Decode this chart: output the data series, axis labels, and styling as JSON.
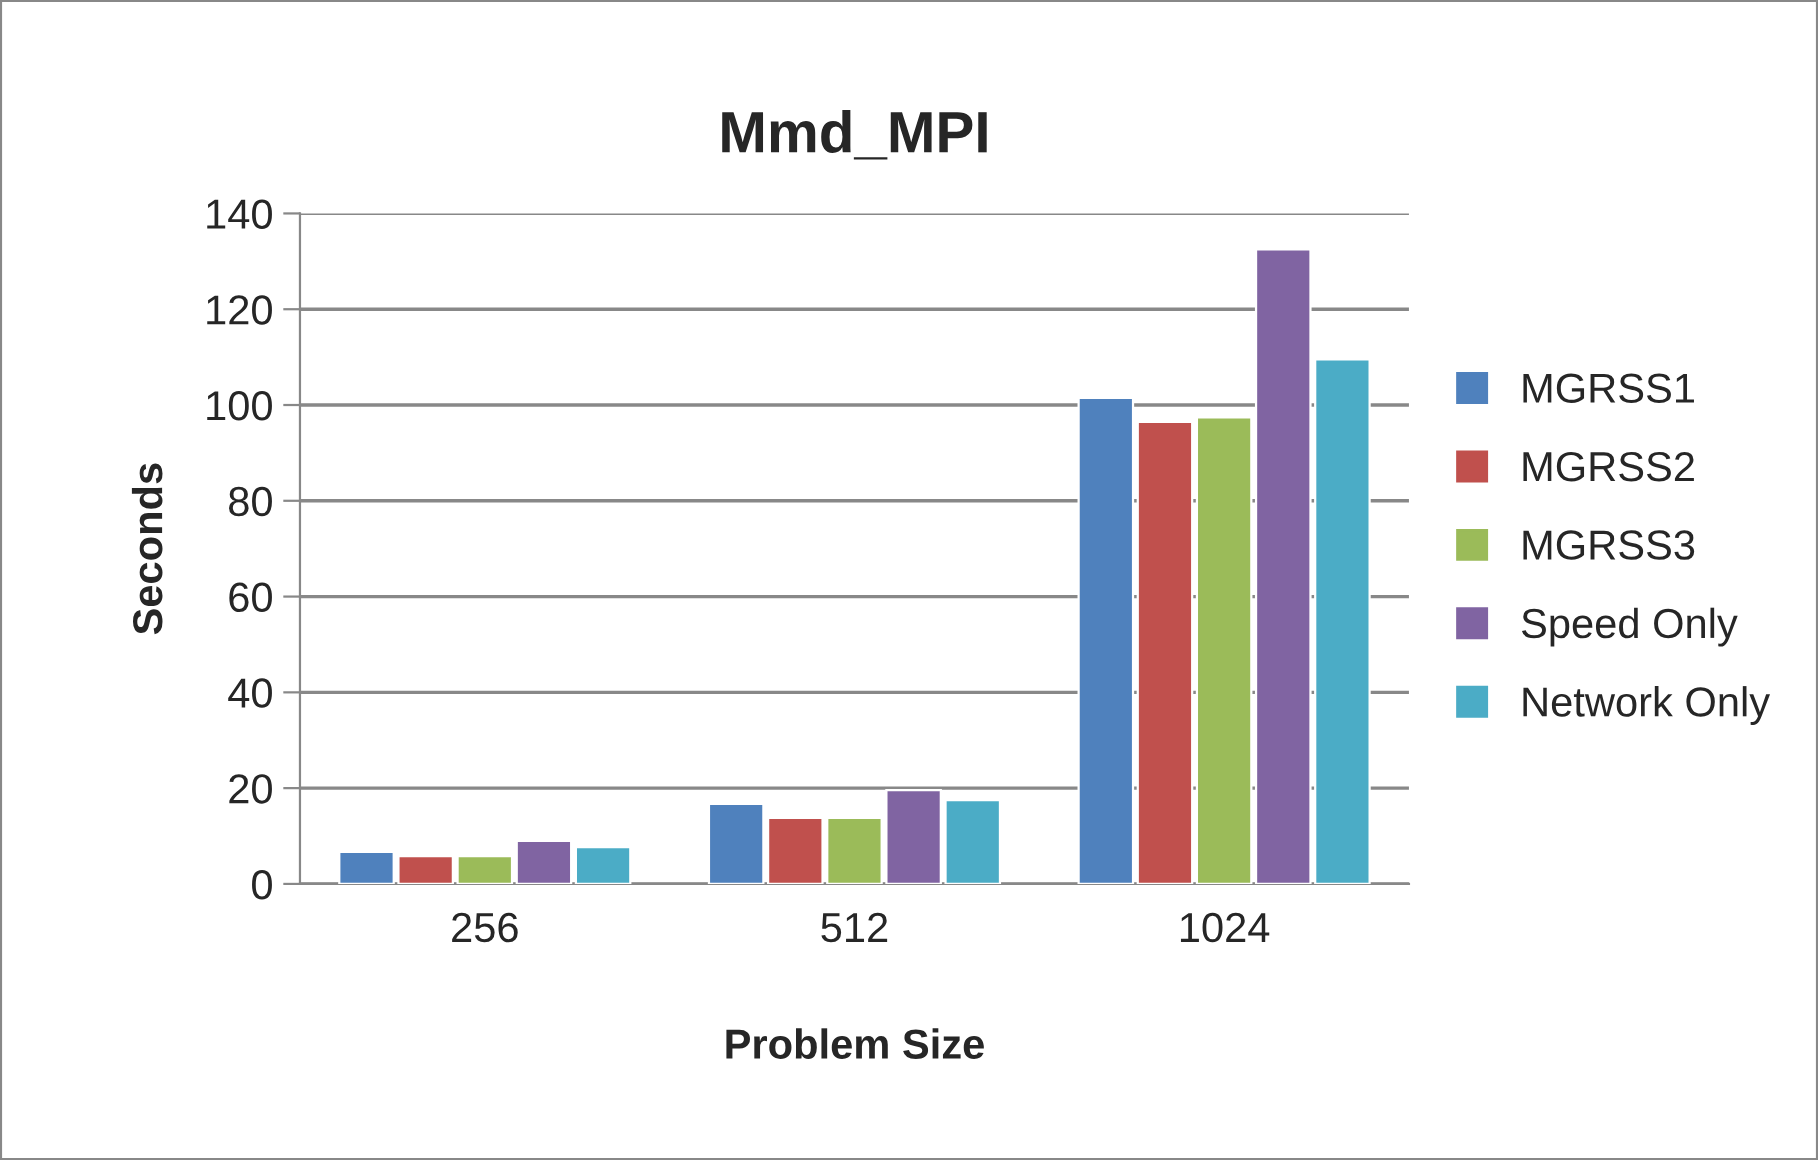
{
  "chart_data": {
    "type": "bar",
    "title": "Mmd_MPI",
    "xlabel": "Problem Size",
    "ylabel": "Seconds",
    "categories": [
      "256",
      "512",
      "1024"
    ],
    "series": [
      {
        "name": "MGRSS1",
        "color": "#4f81bd",
        "values": [
          6.7,
          16.7,
          101.5
        ]
      },
      {
        "name": "MGRSS2",
        "color": "#c0504d",
        "values": [
          5.8,
          13.8,
          96.5
        ]
      },
      {
        "name": "MGRSS3",
        "color": "#9bbb59",
        "values": [
          5.8,
          13.8,
          97.4
        ]
      },
      {
        "name": "Speed Only",
        "color": "#8064a2",
        "values": [
          9.0,
          19.6,
          132.5
        ]
      },
      {
        "name": "Network Only",
        "color": "#4bacc6",
        "values": [
          7.7,
          17.5,
          109.5
        ]
      }
    ],
    "ylim": [
      0,
      140
    ],
    "yticks": [
      0,
      20,
      40,
      60,
      80,
      100,
      120,
      140
    ],
    "grid": "y",
    "legend": "right"
  }
}
